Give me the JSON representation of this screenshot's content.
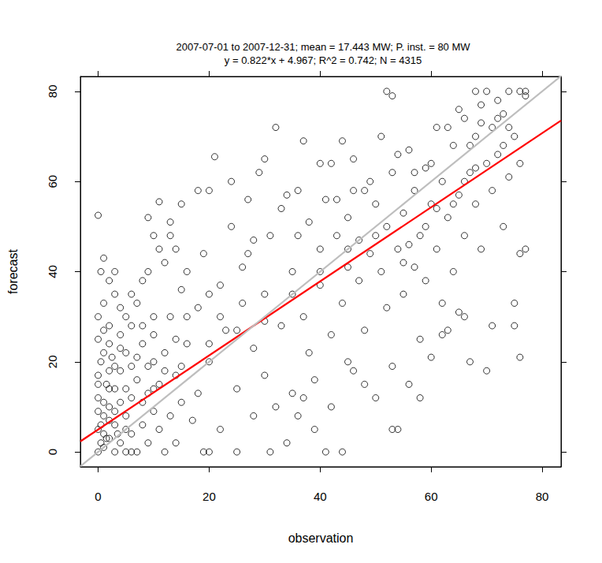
{
  "chart_data": {
    "type": "scatter",
    "title": "2007-07-01 to 2007-12-31; mean = 17.443 MW; P. inst. = 80 MW",
    "subtitle": "y = 0.822*x + 4.967; R^2 = 0.742; N = 4315",
    "x_label": "observation",
    "y_label": "forecast",
    "xlim": [
      -3.2,
      83.4
    ],
    "ylim": [
      -3.3,
      83.3
    ],
    "xticks": [
      0,
      20,
      40,
      60,
      80
    ],
    "yticks": [
      0,
      20,
      40,
      60,
      80
    ],
    "grid": false,
    "marker": "open circle",
    "color": "#000000",
    "x": [
      0,
      0.5,
      1,
      0,
      1,
      2,
      0,
      1.5,
      0.5,
      0,
      2,
      3,
      3,
      4,
      4,
      5,
      5,
      6,
      6,
      7,
      7,
      8,
      8,
      9,
      9,
      10,
      10,
      2,
      0,
      1,
      3,
      0.5,
      0,
      2,
      5,
      6,
      7,
      8,
      4,
      1,
      2,
      3,
      5,
      1,
      2,
      3,
      4,
      5,
      6,
      7,
      0,
      0,
      1,
      2,
      6,
      8,
      9,
      10,
      11,
      11,
      12,
      12,
      13,
      13,
      14,
      14,
      15,
      15,
      12,
      10,
      9,
      11,
      13,
      14,
      16,
      17,
      18,
      18,
      19,
      20,
      19,
      20,
      20,
      21,
      22,
      22,
      23,
      24,
      25,
      25,
      26,
      27,
      27,
      28,
      28,
      29,
      30,
      30,
      31,
      31,
      32,
      33,
      33,
      34,
      35,
      35,
      36,
      36,
      37,
      37,
      38,
      38,
      39,
      40,
      40,
      41,
      41,
      42,
      42,
      43,
      44,
      44,
      45,
      45,
      46,
      46,
      47,
      47,
      48,
      48,
      49,
      50,
      50,
      51,
      51,
      52,
      52,
      53,
      53,
      54,
      54,
      55,
      55,
      56,
      56,
      57,
      57,
      58,
      58,
      59,
      59,
      60,
      60,
      61,
      61,
      62,
      62,
      63,
      63,
      64,
      64,
      65,
      65,
      66,
      66,
      67,
      67,
      68,
      68,
      69,
      69,
      70,
      70,
      70,
      71,
      71,
      72,
      72,
      73,
      73,
      74,
      74,
      75,
      75,
      76,
      76,
      77,
      77,
      52,
      53,
      44,
      30,
      32,
      24,
      18,
      16,
      15,
      36,
      37,
      39,
      42,
      45,
      48,
      53,
      58,
      62,
      66,
      71,
      75,
      76,
      40,
      34,
      28,
      26,
      22,
      20,
      16,
      14,
      12,
      10,
      8,
      6,
      3,
      1,
      11,
      13,
      9,
      4,
      43,
      46,
      49,
      54,
      57,
      60,
      63,
      65,
      67,
      68,
      69,
      72,
      73,
      74,
      76,
      77,
      56,
      59,
      61,
      64,
      66,
      68,
      55,
      50,
      45,
      40,
      35,
      30,
      25,
      20,
      15,
      10,
      5,
      0.5,
      1,
      2,
      3,
      4,
      0,
      1.5,
      2.5,
      3.5
    ],
    "values": [
      0,
      2,
      1,
      5,
      8,
      3,
      12,
      15,
      20,
      25,
      10,
      6,
      14,
      2,
      18,
      8,
      22,
      4,
      12,
      0,
      16,
      6,
      24,
      2,
      13,
      9,
      20,
      28,
      30,
      33,
      35,
      40,
      52.5,
      38,
      30,
      28,
      33,
      38,
      26,
      22,
      18,
      0,
      0,
      4,
      7,
      9,
      11,
      14,
      19,
      21,
      17,
      9,
      27,
      24,
      0,
      11,
      19,
      26,
      5,
      15,
      0,
      22,
      8,
      30,
      2,
      17,
      11,
      36,
      42,
      48,
      52,
      45,
      51,
      45,
      24,
      7,
      13,
      32,
      0,
      0,
      44,
      20,
      58,
      65.5,
      5,
      37,
      27,
      50,
      14,
      0,
      33,
      44,
      56,
      8,
      23,
      62,
      35,
      17,
      0,
      48,
      10,
      28,
      54,
      2,
      40,
      13,
      58,
      48,
      69,
      30,
      22,
      51,
      5,
      37,
      45,
      0,
      56,
      26,
      64,
      48,
      0,
      33,
      41,
      52,
      18,
      65,
      38,
      47,
      27,
      58,
      44,
      12,
      55,
      40,
      70,
      32,
      50,
      19,
      62,
      5,
      45,
      53,
      35,
      67,
      15,
      41,
      58,
      25,
      48,
      63,
      38,
      55,
      21,
      45,
      72,
      33,
      60,
      52,
      27,
      68,
      40,
      57,
      31,
      74,
      48,
      62,
      20,
      55,
      70,
      77,
      45,
      80,
      64,
      18,
      72,
      58,
      78,
      66,
      50,
      75,
      80,
      61,
      70,
      33,
      80,
      21,
      45,
      79,
      80,
      79,
      69,
      65,
      72,
      60,
      58,
      40,
      55,
      8,
      12,
      16,
      10,
      20,
      15,
      5,
      12,
      26,
      30,
      28,
      28,
      44,
      64,
      57,
      47,
      41,
      30,
      35,
      30,
      25,
      18,
      30,
      28,
      35,
      40,
      43,
      55.5,
      48,
      40,
      32,
      56,
      58,
      60,
      66,
      62,
      64,
      72,
      76,
      68,
      80,
      73,
      74,
      68,
      72,
      64,
      80,
      46,
      50,
      54,
      55,
      60,
      63,
      42,
      48,
      45,
      40,
      35,
      29,
      27,
      24,
      19,
      14,
      5,
      6,
      11,
      14,
      19,
      23,
      15,
      3,
      21,
      4
    ],
    "lines": [
      {
        "slope": 0.822,
        "intercept": 4.967,
        "color": "#ff0000"
      },
      {
        "slope": 1,
        "intercept": 0,
        "color": "#bebebe"
      }
    ]
  }
}
